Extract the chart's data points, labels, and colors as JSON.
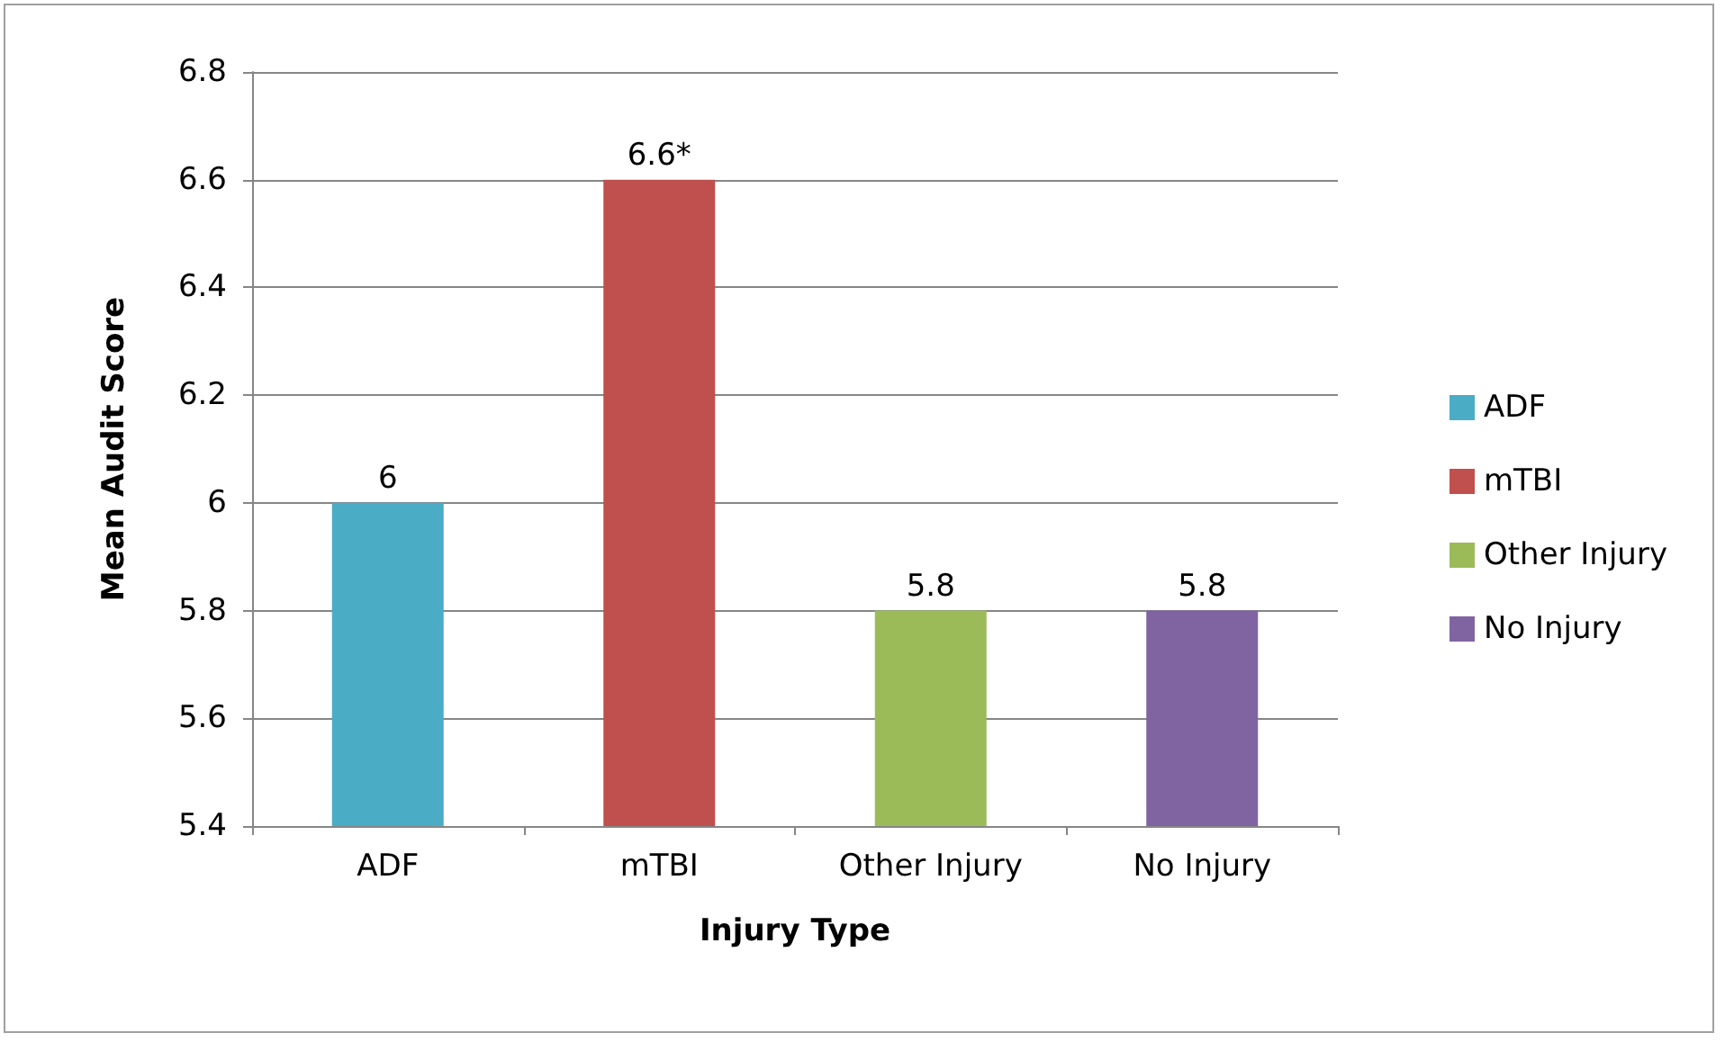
{
  "chart_data": {
    "type": "bar",
    "xlabel": "Injury Type",
    "ylabel": "Mean Audit Score",
    "categories": [
      "ADF",
      "mTBI",
      "Other Injury",
      "No Injury"
    ],
    "series": [
      {
        "name": "ADF",
        "color": "#4bacc6",
        "values": [
          6,
          null,
          null,
          null
        ],
        "value_labels": [
          "6",
          null,
          null,
          null
        ]
      },
      {
        "name": "mTBI",
        "color": "#c0504d",
        "values": [
          null,
          6.6,
          null,
          null
        ],
        "value_labels": [
          null,
          "6.6*",
          null,
          null
        ]
      },
      {
        "name": "Other Injury",
        "color": "#9bbb59",
        "values": [
          null,
          null,
          5.8,
          null
        ],
        "value_labels": [
          null,
          null,
          "5.8",
          null
        ]
      },
      {
        "name": "No Injury",
        "color": "#8064a2",
        "values": [
          null,
          null,
          null,
          5.8
        ],
        "value_labels": [
          null,
          null,
          null,
          "5.8"
        ]
      }
    ],
    "ylim": [
      5.4,
      6.8
    ],
    "yticks": [
      5.4,
      5.6,
      5.8,
      6,
      6.2,
      6.4,
      6.6,
      6.8
    ],
    "grid": "y",
    "legend": "right"
  }
}
